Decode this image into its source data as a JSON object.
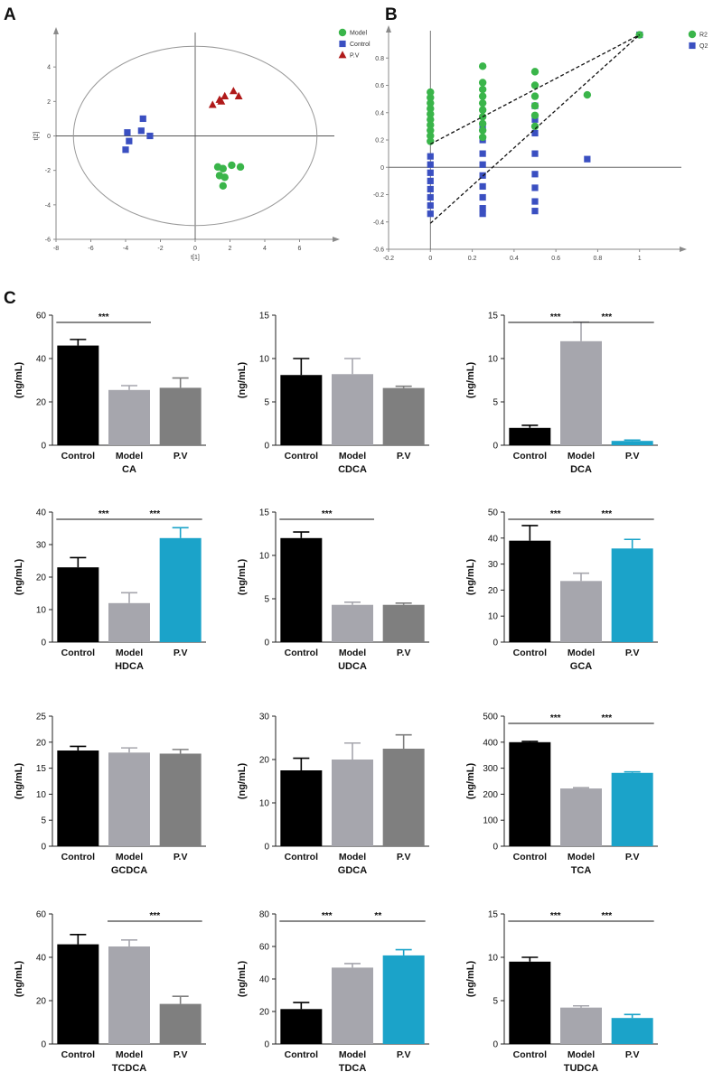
{
  "figure": {
    "panel_labels": [
      "A",
      "B",
      "C"
    ]
  },
  "chart_data": [
    {
      "id": "A",
      "type": "scatter",
      "title": "",
      "xlabel": "t[1]",
      "ylabel": "t[2]",
      "xlim": [
        -8,
        8
      ],
      "ylim": [
        -6,
        6
      ],
      "xticks": [
        -8,
        -6,
        -4,
        -2,
        0,
        2,
        4,
        6
      ],
      "yticks": [
        -6,
        -4,
        -2,
        0,
        2,
        4
      ],
      "ellipse": {
        "rx": 7,
        "ry": 5.2
      },
      "legend": [
        "Model",
        "Control",
        "P.V"
      ],
      "series": [
        {
          "name": "Model",
          "color": "#3ab54a",
          "marker": "circle",
          "points": [
            [
              1.3,
              -1.8
            ],
            [
              1.6,
              -1.9
            ],
            [
              2.1,
              -1.7
            ],
            [
              2.6,
              -1.8
            ],
            [
              1.4,
              -2.3
            ],
            [
              1.7,
              -2.4
            ],
            [
              1.6,
              -2.9
            ]
          ]
        },
        {
          "name": "Control",
          "color": "#3a4fc1",
          "marker": "square",
          "points": [
            [
              -3,
              1.0
            ],
            [
              -3.9,
              0.2
            ],
            [
              -3.1,
              0.3
            ],
            [
              -3.8,
              -0.3
            ],
            [
              -2.6,
              0.0
            ],
            [
              -4.0,
              -0.8
            ]
          ]
        },
        {
          "name": "P.V",
          "color": "#b01a1a",
          "marker": "triangle",
          "points": [
            [
              1.0,
              1.8
            ],
            [
              1.4,
              2.1
            ],
            [
              1.7,
              2.3
            ],
            [
              2.2,
              2.6
            ],
            [
              2.5,
              2.3
            ],
            [
              1.5,
              2.0
            ]
          ]
        }
      ]
    },
    {
      "id": "B",
      "type": "scatter",
      "title": "",
      "xlabel": "",
      "ylabel": "",
      "xlim": [
        -0.2,
        1.2
      ],
      "ylim": [
        -0.6,
        1.0
      ],
      "xticks": [
        -0.2,
        0,
        0.2,
        0.4,
        0.6,
        0.8,
        1
      ],
      "yticks": [
        -0.6,
        -0.4,
        -0.2,
        0,
        0.2,
        0.4,
        0.6,
        0.8
      ],
      "legend": [
        "R2",
        "Q2"
      ],
      "lines": [
        {
          "from": [
            0,
            0.17
          ],
          "to": [
            1,
            0.97
          ]
        },
        {
          "from": [
            0,
            -0.41
          ],
          "to": [
            1,
            0.97
          ]
        }
      ],
      "series": [
        {
          "name": "R2",
          "color": "#3ab54a",
          "marker": "circle",
          "points": [
            [
              0,
              0.55
            ],
            [
              0,
              0.51
            ],
            [
              0,
              0.47
            ],
            [
              0,
              0.43
            ],
            [
              0,
              0.39
            ],
            [
              0,
              0.35
            ],
            [
              0,
              0.31
            ],
            [
              0,
              0.27
            ],
            [
              0,
              0.23
            ],
            [
              0,
              0.19
            ],
            [
              0.25,
              0.74
            ],
            [
              0.25,
              0.62
            ],
            [
              0.25,
              0.57
            ],
            [
              0.25,
              0.52
            ],
            [
              0.25,
              0.47
            ],
            [
              0.25,
              0.42
            ],
            [
              0.25,
              0.37
            ],
            [
              0.25,
              0.32
            ],
            [
              0.25,
              0.27
            ],
            [
              0.25,
              0.22
            ],
            [
              0.5,
              0.7
            ],
            [
              0.5,
              0.6
            ],
            [
              0.5,
              0.52
            ],
            [
              0.5,
              0.45
            ],
            [
              0.5,
              0.38
            ],
            [
              0.5,
              0.3
            ],
            [
              0.75,
              0.53
            ],
            [
              1,
              0.97
            ]
          ]
        },
        {
          "name": "Q2",
          "color": "#3a4fc1",
          "marker": "square",
          "points": [
            [
              0,
              0.08
            ],
            [
              0,
              0.02
            ],
            [
              0,
              -0.04
            ],
            [
              0,
              -0.1
            ],
            [
              0,
              -0.16
            ],
            [
              0,
              -0.22
            ],
            [
              0,
              -0.28
            ],
            [
              0,
              -0.34
            ],
            [
              0.25,
              0.3
            ],
            [
              0.25,
              0.2
            ],
            [
              0.25,
              0.1
            ],
            [
              0.25,
              0.02
            ],
            [
              0.25,
              -0.06
            ],
            [
              0.25,
              -0.14
            ],
            [
              0.25,
              -0.22
            ],
            [
              0.25,
              -0.3
            ],
            [
              0.25,
              -0.34
            ],
            [
              0.5,
              0.45
            ],
            [
              0.5,
              0.35
            ],
            [
              0.5,
              0.25
            ],
            [
              0.5,
              0.1
            ],
            [
              0.5,
              -0.05
            ],
            [
              0.5,
              -0.15
            ],
            [
              0.5,
              -0.25
            ],
            [
              0.5,
              -0.32
            ],
            [
              0.75,
              0.06
            ],
            [
              1,
              0.97
            ]
          ]
        }
      ]
    },
    {
      "id": "CA",
      "type": "bar",
      "title": "CA",
      "ylabel": "(ng/mL)",
      "categories": [
        "Control",
        "Model",
        "P.V"
      ],
      "values": [
        46,
        25.5,
        26.5
      ],
      "errors": [
        2.8,
        2.0,
        4.5
      ],
      "colors": [
        "#000000",
        "#a6a6ad",
        "#7f7f7f"
      ],
      "ylim": [
        0,
        60
      ],
      "yticks": [
        0,
        20,
        40,
        60
      ],
      "significance": [
        {
          "from": 0,
          "to": 1,
          "label": "***"
        }
      ]
    },
    {
      "id": "CDCA",
      "type": "bar",
      "title": "CDCA",
      "ylabel": "(ng/mL)",
      "categories": [
        "Control",
        "Model",
        "P.V"
      ],
      "values": [
        8.1,
        8.2,
        6.6
      ],
      "errors": [
        1.9,
        1.8,
        0.2
      ],
      "colors": [
        "#000000",
        "#a6a6ad",
        "#7f7f7f"
      ],
      "ylim": [
        0,
        15
      ],
      "yticks": [
        0,
        5,
        10,
        15
      ],
      "significance": []
    },
    {
      "id": "DCA",
      "type": "bar",
      "title": "DCA",
      "ylabel": "(ng/mL)",
      "categories": [
        "Control",
        "Model",
        "P.V"
      ],
      "values": [
        2.0,
        12.0,
        0.5
      ],
      "errors": [
        0.3,
        2.2,
        0.1
      ],
      "colors": [
        "#000000",
        "#a6a6ad",
        "#1ba3c9"
      ],
      "ylim": [
        0,
        15
      ],
      "yticks": [
        0,
        5,
        10,
        15
      ],
      "significance": [
        {
          "from": 0,
          "to": 1,
          "label": "***"
        },
        {
          "from": 1,
          "to": 2,
          "label": "***"
        }
      ]
    },
    {
      "id": "HDCA",
      "type": "bar",
      "title": "HDCA",
      "ylabel": "(ng/mL)",
      "categories": [
        "Control",
        "Model",
        "P.V"
      ],
      "values": [
        23,
        12,
        32
      ],
      "errors": [
        3.0,
        3.2,
        3.2
      ],
      "colors": [
        "#000000",
        "#a6a6ad",
        "#1ba3c9"
      ],
      "ylim": [
        0,
        40
      ],
      "yticks": [
        0,
        10,
        20,
        30,
        40
      ],
      "significance": [
        {
          "from": 0,
          "to": 1,
          "label": "***"
        },
        {
          "from": 1,
          "to": 2,
          "label": "***"
        }
      ]
    },
    {
      "id": "UDCA",
      "type": "bar",
      "title": "UDCA",
      "ylabel": "(ng/mL)",
      "categories": [
        "Control",
        "Model",
        "P.V"
      ],
      "values": [
        12.0,
        4.3,
        4.3
      ],
      "errors": [
        0.7,
        0.3,
        0.2
      ],
      "colors": [
        "#000000",
        "#a6a6ad",
        "#7f7f7f"
      ],
      "ylim": [
        0,
        15
      ],
      "yticks": [
        0,
        5,
        10,
        15
      ],
      "significance": [
        {
          "from": 0,
          "to": 1,
          "label": "***"
        }
      ]
    },
    {
      "id": "GCA",
      "type": "bar",
      "title": "GCA",
      "ylabel": "(ng/mL)",
      "categories": [
        "Control",
        "Model",
        "P.V"
      ],
      "values": [
        39,
        23.5,
        36
      ],
      "errors": [
        5.8,
        3.0,
        3.5
      ],
      "colors": [
        "#000000",
        "#a6a6ad",
        "#1ba3c9"
      ],
      "ylim": [
        0,
        50
      ],
      "yticks": [
        0,
        10,
        20,
        30,
        40,
        50
      ],
      "significance": [
        {
          "from": 0,
          "to": 1,
          "label": "***"
        },
        {
          "from": 1,
          "to": 2,
          "label": "***"
        }
      ]
    },
    {
      "id": "GCDCA",
      "type": "bar",
      "title": "GCDCA",
      "ylabel": "(ng/mL)",
      "categories": [
        "Control",
        "Model",
        "P.V"
      ],
      "values": [
        18.4,
        18.0,
        17.8
      ],
      "errors": [
        0.8,
        0.9,
        0.8
      ],
      "colors": [
        "#000000",
        "#a6a6ad",
        "#7f7f7f"
      ],
      "ylim": [
        0,
        25
      ],
      "yticks": [
        0,
        5,
        10,
        15,
        20,
        25
      ],
      "significance": []
    },
    {
      "id": "GDCA",
      "type": "bar",
      "title": "GDCA",
      "ylabel": "(ng/mL)",
      "categories": [
        "Control",
        "Model",
        "P.V"
      ],
      "values": [
        17.5,
        20.0,
        22.5
      ],
      "errors": [
        2.8,
        3.8,
        3.2
      ],
      "colors": [
        "#000000",
        "#a6a6ad",
        "#7f7f7f"
      ],
      "ylim": [
        0,
        30
      ],
      "yticks": [
        0,
        10,
        20,
        30
      ],
      "significance": []
    },
    {
      "id": "TCA",
      "type": "bar",
      "title": "TCA",
      "ylabel": "(ng/mL)",
      "categories": [
        "Control",
        "Model",
        "P.V"
      ],
      "values": [
        400,
        222,
        282
      ],
      "errors": [
        3,
        3,
        4
      ],
      "colors": [
        "#000000",
        "#a6a6ad",
        "#1ba3c9"
      ],
      "ylim": [
        0,
        500
      ],
      "yticks": [
        0,
        100,
        200,
        300,
        400,
        500
      ],
      "significance": [
        {
          "from": 0,
          "to": 1,
          "label": "***"
        },
        {
          "from": 1,
          "to": 2,
          "label": "***"
        }
      ]
    },
    {
      "id": "TCDCA",
      "type": "bar",
      "title": "TCDCA",
      "ylabel": "(ng/mL)",
      "categories": [
        "Control",
        "Model",
        "P.V"
      ],
      "values": [
        46,
        45,
        18.5
      ],
      "errors": [
        4.5,
        3.0,
        3.5
      ],
      "colors": [
        "#000000",
        "#a6a6ad",
        "#7f7f7f"
      ],
      "ylim": [
        0,
        60
      ],
      "yticks": [
        0,
        20,
        40,
        60
      ],
      "significance": [
        {
          "from": 1,
          "to": 2,
          "label": "***"
        }
      ]
    },
    {
      "id": "TDCA",
      "type": "bar",
      "title": "TDCA",
      "ylabel": "(ng/mL)",
      "categories": [
        "Control",
        "Model",
        "P.V"
      ],
      "values": [
        21.5,
        47,
        54.5
      ],
      "errors": [
        4.0,
        2.5,
        3.5
      ],
      "colors": [
        "#000000",
        "#a6a6ad",
        "#1ba3c9"
      ],
      "ylim": [
        0,
        80
      ],
      "yticks": [
        0,
        20,
        40,
        60,
        80
      ],
      "significance": [
        {
          "from": 0,
          "to": 1,
          "label": "***"
        },
        {
          "from": 1,
          "to": 2,
          "label": "**"
        }
      ]
    },
    {
      "id": "TUDCA",
      "type": "bar",
      "title": "TUDCA",
      "ylabel": "(ng/mL)",
      "categories": [
        "Control",
        "Model",
        "P.V"
      ],
      "values": [
        9.5,
        4.2,
        3.0
      ],
      "errors": [
        0.5,
        0.2,
        0.4
      ],
      "colors": [
        "#000000",
        "#a6a6ad",
        "#1ba3c9"
      ],
      "ylim": [
        0,
        15
      ],
      "yticks": [
        0,
        5,
        10,
        15
      ],
      "significance": [
        {
          "from": 0,
          "to": 1,
          "label": "***"
        },
        {
          "from": 1,
          "to": 2,
          "label": "***"
        }
      ]
    }
  ]
}
